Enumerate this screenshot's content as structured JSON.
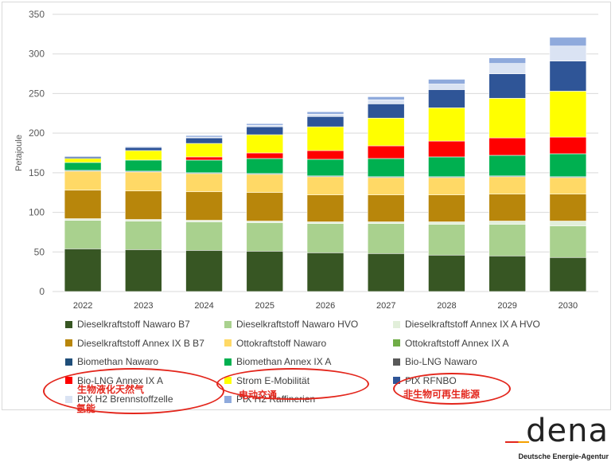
{
  "chart_data": {
    "type": "bar",
    "stacked": true,
    "title": "",
    "xlabel": "",
    "ylabel": "Petajoule",
    "ylim": [
      0,
      350
    ],
    "yticks": [
      0,
      50,
      100,
      150,
      200,
      250,
      300,
      350
    ],
    "grid": true,
    "legend_position": "bottom",
    "categories": [
      "2022",
      "2023",
      "2024",
      "2025",
      "2026",
      "2027",
      "2028",
      "2029",
      "2030"
    ],
    "series": [
      {
        "name": "Dieselkraftstoff Nawaro B7",
        "color": "#375623",
        "values": [
          54,
          53,
          52,
          51,
          49,
          48,
          46,
          45,
          43
        ]
      },
      {
        "name": "Dieselkraftstoff Nawaro HVO",
        "color": "#a9d18e",
        "values": [
          36,
          36,
          36,
          36,
          37,
          38,
          39,
          40,
          40
        ]
      },
      {
        "name": "Dieselkraftstoff Annex IX A HVO",
        "color": "#e2efda",
        "values": [
          2,
          2,
          2,
          2,
          2,
          2,
          3,
          4,
          6
        ]
      },
      {
        "name": "Dieselkraftstoff Annex IX B B7",
        "color": "#b8860b",
        "values": [
          36,
          36,
          36,
          36,
          34,
          34,
          34,
          34,
          34
        ]
      },
      {
        "name": "Ottokraftstoff Nawaro",
        "color": "#ffd966",
        "values": [
          24,
          24,
          23,
          23,
          23,
          22,
          22,
          22,
          21
        ]
      },
      {
        "name": "Ottokraftstoff Annex IX A",
        "color": "#70ad47",
        "values": [
          0,
          0,
          0,
          0,
          0,
          0,
          0,
          0,
          0
        ]
      },
      {
        "name": "Biomethan Nawaro",
        "color": "#1f4e79",
        "values": [
          1,
          1,
          1,
          1,
          1,
          1,
          1,
          1,
          1
        ]
      },
      {
        "name": "Biomethan Annex IX A",
        "color": "#00b050",
        "values": [
          10,
          14,
          16,
          19,
          21,
          23,
          25,
          26,
          29
        ]
      },
      {
        "name": "Bio-LNG Nawaro",
        "color": "#595959",
        "values": [
          0,
          0,
          0,
          0,
          0,
          0,
          0,
          0,
          0
        ]
      },
      {
        "name": "Bio-LNG Annex IX A",
        "color": "#ff0000",
        "values": [
          0,
          0,
          4,
          7,
          11,
          16,
          20,
          22,
          21
        ]
      },
      {
        "name": "Strom E-Mobilität",
        "color": "#ffff00",
        "values": [
          5,
          12,
          17,
          23,
          30,
          35,
          42,
          50,
          58
        ]
      },
      {
        "name": "PtX RFNBO",
        "color": "#2f5597",
        "values": [
          2,
          4,
          7,
          10,
          13,
          18,
          23,
          31,
          38
        ]
      },
      {
        "name": "PtX H2 Brennstoffzelle",
        "color": "#dae3f3",
        "values": [
          0,
          0,
          1,
          2,
          3,
          5,
          7,
          13,
          19
        ]
      },
      {
        "name": "PtX H2 Raffinerien",
        "color": "#8faadc",
        "values": [
          1,
          1,
          2,
          2,
          3,
          4,
          6,
          7,
          11
        ]
      }
    ]
  },
  "annotations": {
    "note_biolng": "生物液化天然气",
    "note_hydrogen": "氢能",
    "note_emobility": "电动交通",
    "note_rfnbo": "非生物可再生能源"
  },
  "logo": {
    "word": "dena",
    "subtitle": "Deutsche Energie-Agentur",
    "accent_colors": [
      "#e3261c",
      "#f4a000"
    ]
  }
}
